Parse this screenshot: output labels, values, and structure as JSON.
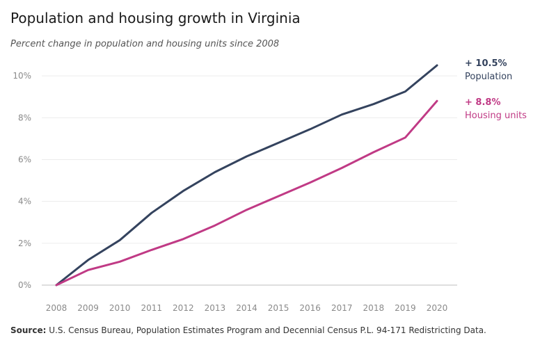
{
  "title": "Population and housing growth in Virginia",
  "subtitle": "Percent change in population and housing units since 2008",
  "source_label": "Source:",
  "source_text": "U.S. Census Bureau, Population Estimates Program and Decennial Census P.L. 94-171 Redistricting Data.",
  "colors": {
    "population": "#34435e",
    "housing": "#c03a85",
    "grid": "#ececec",
    "axis": "#bdbdbd"
  },
  "chart_data": {
    "type": "line",
    "x": [
      2008,
      2009,
      2010,
      2011,
      2012,
      2013,
      2014,
      2015,
      2016,
      2017,
      2018,
      2019,
      2020
    ],
    "x_tick_labels": [
      "2008",
      "2009",
      "2010",
      "2011",
      "2012",
      "2013",
      "2014",
      "2015",
      "2016",
      "2017",
      "2018",
      "2019",
      "2020"
    ],
    "y_ticks": [
      0,
      2,
      4,
      6,
      8,
      10
    ],
    "y_tick_labels": [
      "0%",
      "2%",
      "4%",
      "6%",
      "8%",
      "10%"
    ],
    "ylim": [
      0,
      10.8
    ],
    "grid": true,
    "series": [
      {
        "key": "population",
        "name": "Population",
        "end_label": "+ 10.5%",
        "values": [
          0,
          1.2,
          2.15,
          3.45,
          4.5,
          5.4,
          6.15,
          6.8,
          7.45,
          8.15,
          8.65,
          9.25,
          10.5
        ]
      },
      {
        "key": "housing",
        "name": "Housing units",
        "end_label": "+ 8.8%",
        "values": [
          0,
          0.72,
          1.12,
          1.68,
          2.2,
          2.85,
          3.6,
          4.25,
          4.9,
          5.6,
          6.35,
          7.05,
          8.8
        ]
      }
    ]
  }
}
